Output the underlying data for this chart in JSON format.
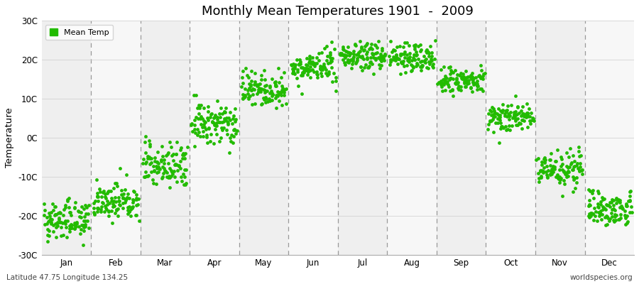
{
  "title": "Monthly Mean Temperatures 1901  -  2009",
  "ylabel": "Temperature",
  "dot_color": "#22bb00",
  "bg_color": "#ffffff",
  "band_colors": [
    "#efefef",
    "#f7f7f7"
  ],
  "ylim": [
    -30,
    30
  ],
  "yticks": [
    -30,
    -20,
    -10,
    0,
    10,
    20,
    30
  ],
  "ytick_labels": [
    "-30C",
    "-20C",
    "-10C",
    "0C",
    "10C",
    "20C",
    "30C"
  ],
  "months": [
    "Jan",
    "Feb",
    "Mar",
    "Apr",
    "May",
    "Jun",
    "Jul",
    "Aug",
    "Sep",
    "Oct",
    "Nov",
    "Dec"
  ],
  "month_means": [
    -21.0,
    -16.5,
    -7.0,
    3.5,
    12.5,
    18.0,
    21.0,
    20.5,
    14.5,
    5.5,
    -8.0,
    -18.0
  ],
  "month_stds": [
    2.5,
    2.2,
    3.2,
    2.8,
    2.2,
    2.0,
    1.8,
    1.8,
    1.8,
    2.0,
    2.2,
    2.2
  ],
  "n_years": 109,
  "subtitle_left": "Latitude 47.75 Longitude 134.25",
  "subtitle_right": "worldspecies.org",
  "marker_size": 12,
  "legend_label": "Mean Temp"
}
